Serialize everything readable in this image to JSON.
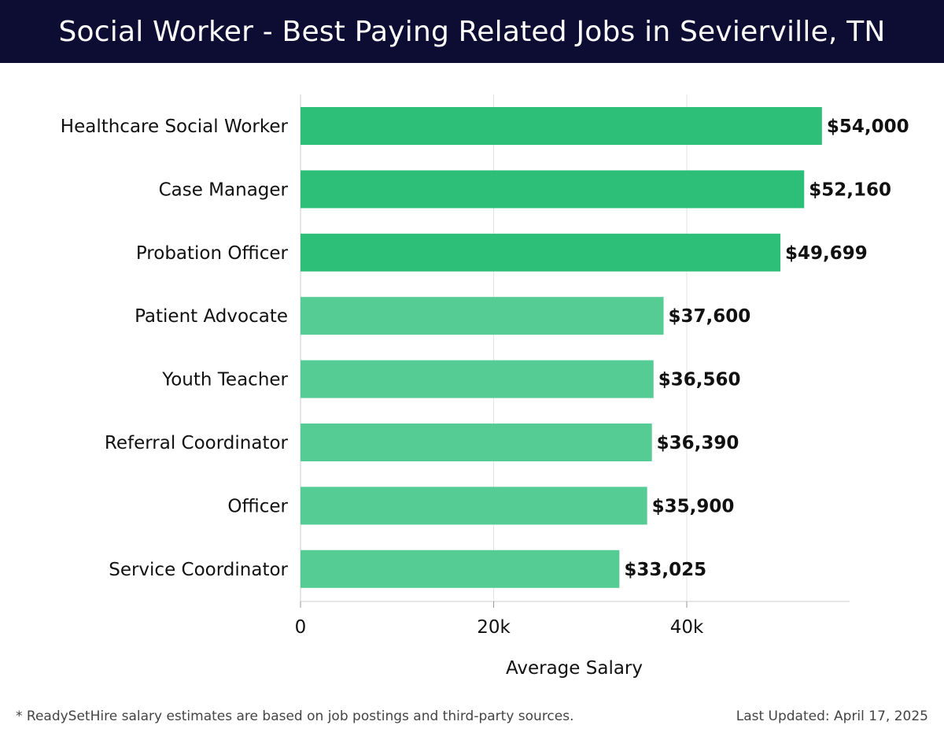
{
  "header": {
    "title": "Social Worker - Best Paying Related Jobs in Sevierville, TN"
  },
  "footer": {
    "note": "* ReadySetHire salary estimates are based on job postings and third-party sources.",
    "last_updated": "Last Updated: April 17, 2025"
  },
  "colors": {
    "header_bg": "#0d0d33",
    "bar_top": "#2dbe78",
    "bar_other": "#55cc94",
    "grid": "#e3e3e3",
    "axis": "#cccccc"
  },
  "chart_data": {
    "type": "bar",
    "orientation": "horizontal",
    "categories": [
      "Healthcare Social Worker",
      "Case Manager",
      "Probation Officer",
      "Patient Advocate",
      "Youth Teacher",
      "Referral Coordinator",
      "Officer",
      "Service Coordinator"
    ],
    "values": [
      54000,
      52160,
      49699,
      37600,
      36560,
      36390,
      35900,
      33025
    ],
    "value_labels": [
      "$54,000",
      "$52,160",
      "$49,699",
      "$37,600",
      "$36,560",
      "$36,390",
      "$35,900",
      "$33,025"
    ],
    "highlight_top": 3,
    "xlabel": "Average Salary",
    "ylabel": "",
    "xlim": [
      0,
      57000
    ],
    "xticks": [
      0,
      20000,
      40000
    ],
    "xtick_labels": [
      "0",
      "20k",
      "40k"
    ],
    "grid": true
  }
}
